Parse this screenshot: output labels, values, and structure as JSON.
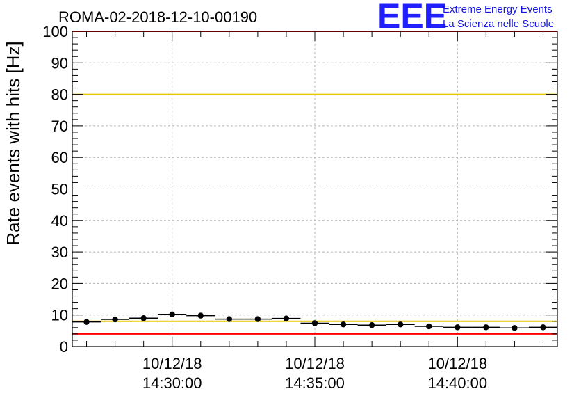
{
  "header": {
    "run_title": "ROMA-02-2018-12-10-00190",
    "logo_text": "EEE",
    "logo_line1": "Extreme Energy Events",
    "logo_line2": "La Scienza nelle Scuole"
  },
  "chart_data": {
    "type": "scatter",
    "title": "ROMA-02-2018-12-10-00190",
    "ylabel": "Rate events with hits [Hz]",
    "xlabel": "",
    "ylim": [
      0,
      100
    ],
    "xlim": [
      "14:26:30",
      "14:43:30"
    ],
    "y_ticks": [
      "0",
      "10",
      "20",
      "30",
      "40",
      "50",
      "60",
      "70",
      "80",
      "90",
      "100"
    ],
    "x_ticks": [
      {
        "date": "10/12/18",
        "time": "14:30:00"
      },
      {
        "date": "10/12/18",
        "time": "14:35:00"
      },
      {
        "date": "10/12/18",
        "time": "14:40:00"
      }
    ],
    "grid": true,
    "reference_lines": [
      {
        "y": 100,
        "color": "#ff0000"
      },
      {
        "y": 80,
        "color": "#e6c800"
      },
      {
        "y": 8,
        "color": "#e6c800"
      },
      {
        "y": 4,
        "color": "#ff0000"
      }
    ],
    "marker_color": "#000000",
    "series": [
      {
        "x": [
          "14:27:00",
          "14:28:00",
          "14:29:00",
          "14:30:00",
          "14:31:00",
          "14:32:00",
          "14:33:00",
          "14:34:00",
          "14:35:00",
          "14:36:00",
          "14:37:00",
          "14:38:00",
          "14:39:00",
          "14:40:00",
          "14:41:00",
          "14:42:00",
          "14:43:00"
        ],
        "values": [
          7.8,
          8.6,
          9.0,
          10.2,
          9.8,
          8.7,
          8.7,
          8.9,
          7.4,
          7.0,
          6.8,
          7.0,
          6.4,
          6.1,
          6.1,
          5.9,
          6.1
        ]
      }
    ]
  }
}
